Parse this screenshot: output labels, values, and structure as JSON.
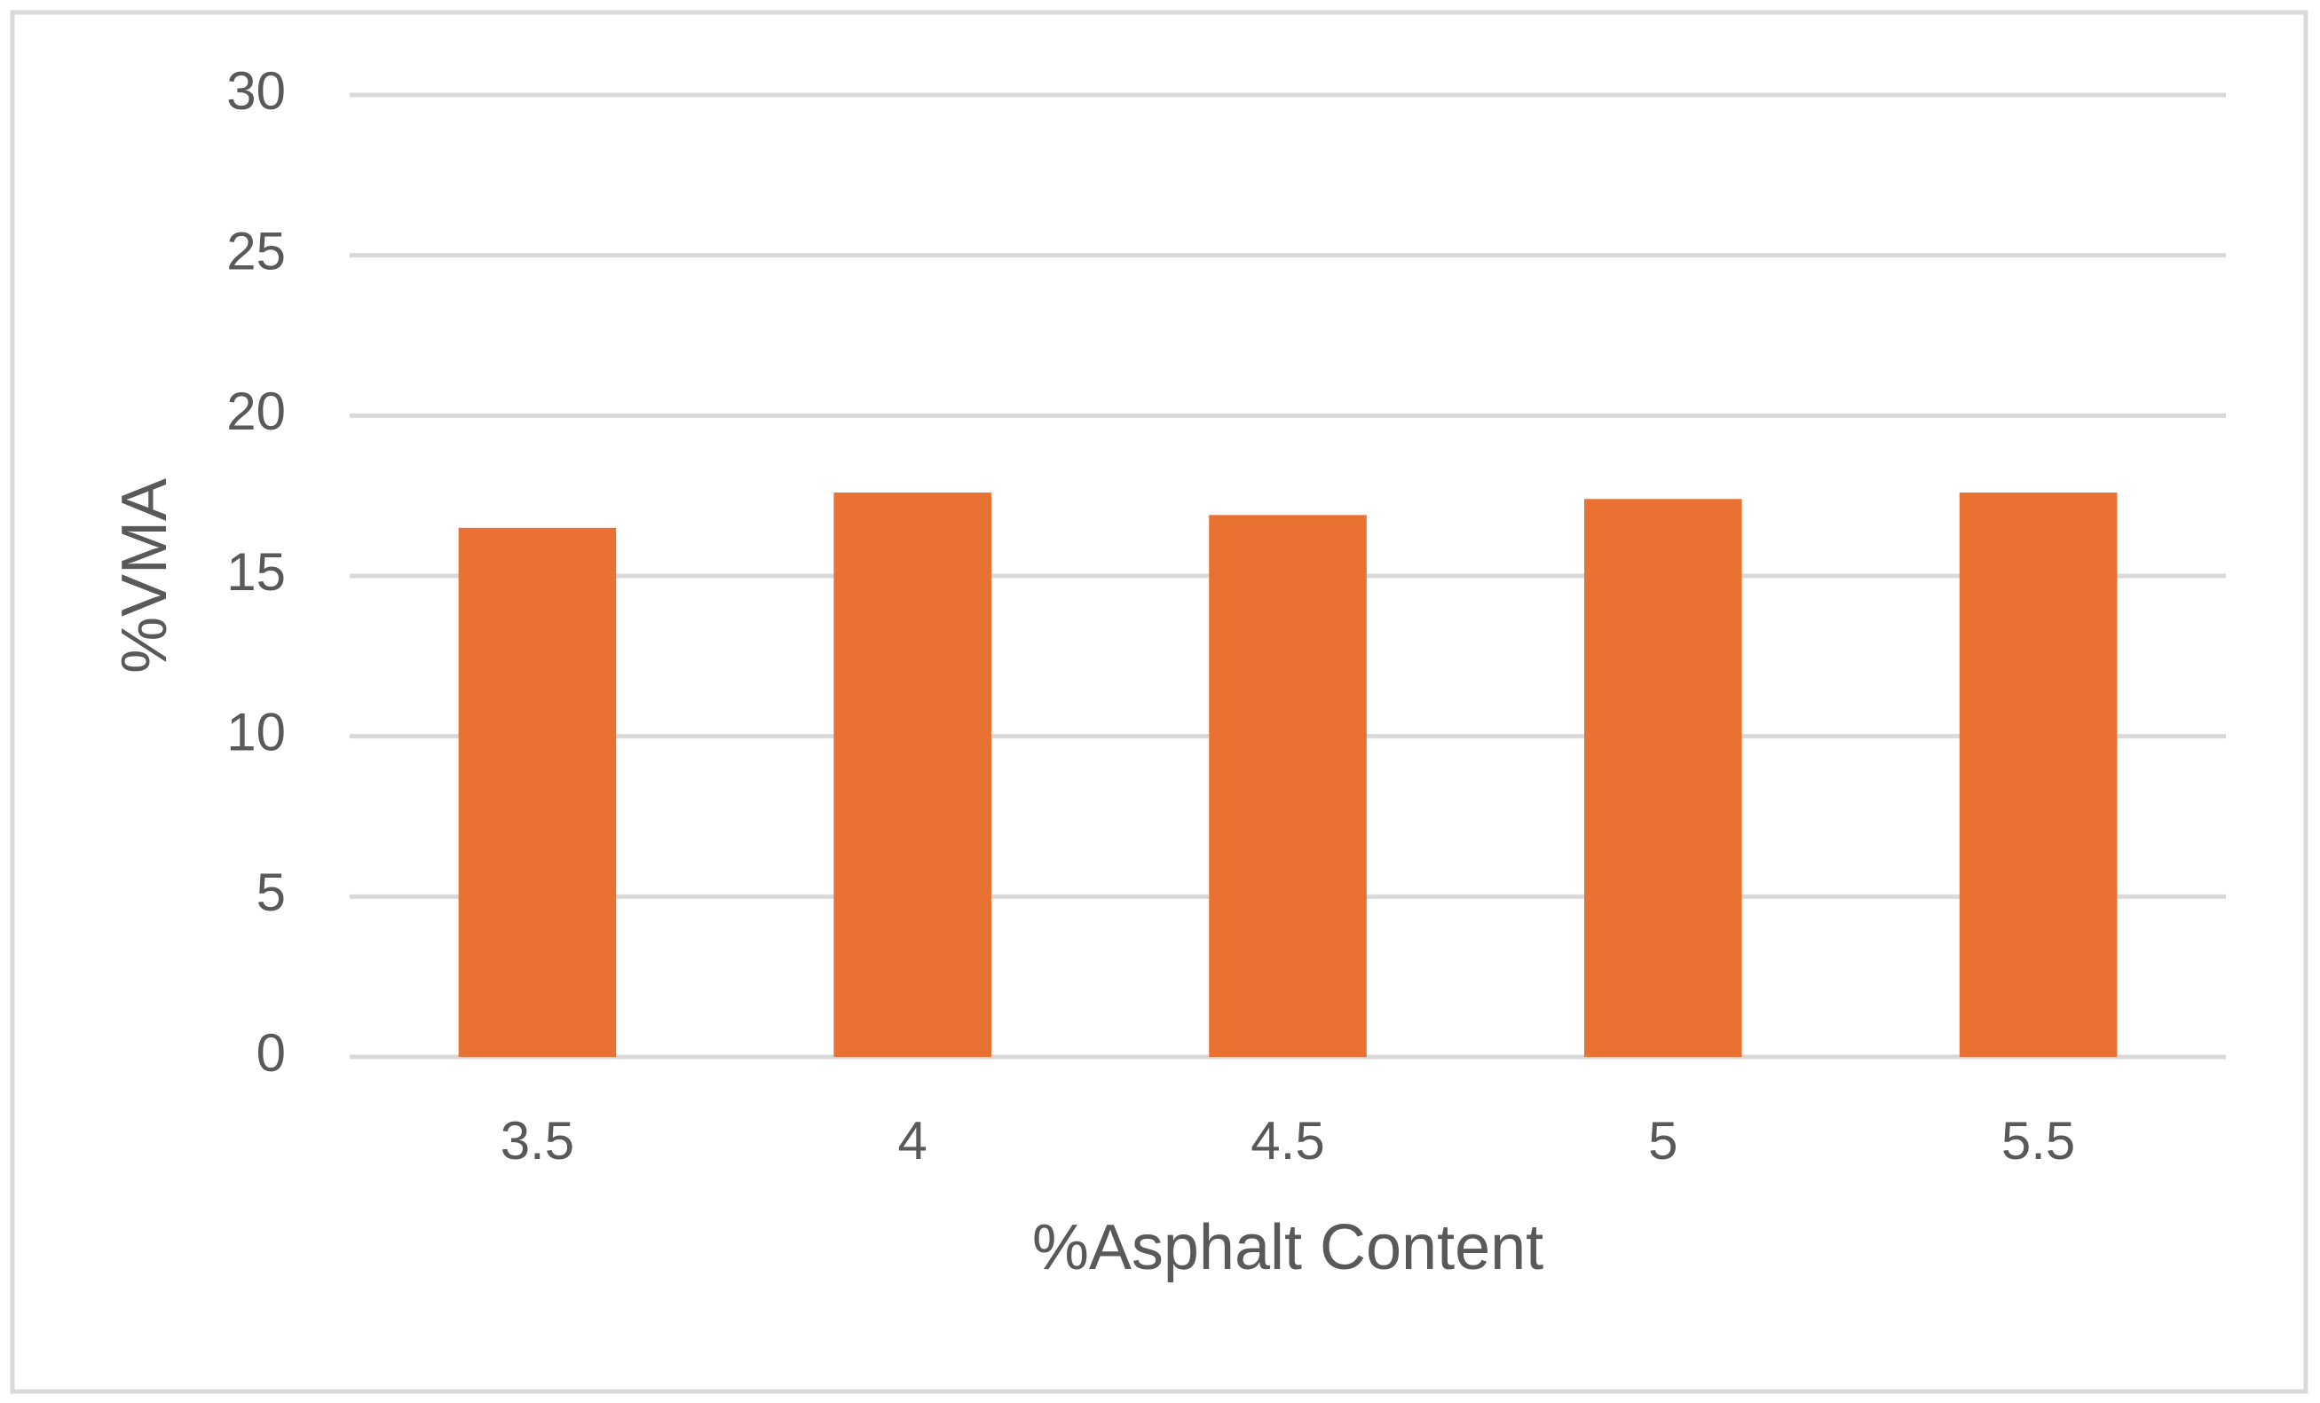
{
  "chart_data": {
    "type": "bar",
    "x_label": "%Asphalt Content",
    "y_label": "%VMA",
    "categories": [
      "3.5",
      "4",
      "4.5",
      "5",
      "5.5"
    ],
    "values": [
      16.5,
      17.6,
      16.9,
      17.4,
      17.6
    ],
    "color": "#e97132",
    "ylim": [
      0,
      30
    ],
    "yticks": [
      0,
      5,
      10,
      15,
      20,
      25,
      30
    ],
    "grid": true
  }
}
